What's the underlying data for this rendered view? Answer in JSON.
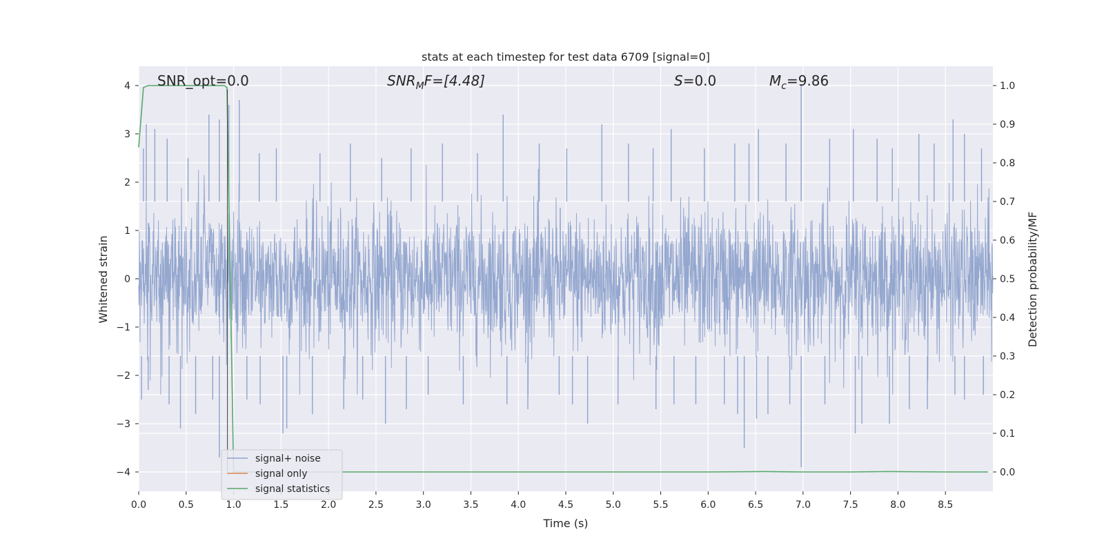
{
  "chart_data": {
    "type": "line",
    "title": "stats at each timestep for test data 6709 [signal=0]",
    "xlabel": "Time (s)",
    "ylabel_left": "Whitened strain",
    "ylabel_right": "Detection probability/MF",
    "xlim": [
      0.0,
      9.0
    ],
    "ylim_left": [
      -4.4,
      4.4
    ],
    "ylim_right": [
      -0.05,
      1.05
    ],
    "x_ticks": [
      "0.0",
      "0.5",
      "1.0",
      "1.5",
      "2.0",
      "2.5",
      "3.0",
      "3.5",
      "4.0",
      "4.5",
      "5.0",
      "5.5",
      "6.0",
      "6.5",
      "7.0",
      "7.5",
      "8.0",
      "8.5"
    ],
    "x_tick_values": [
      0,
      0.5,
      1,
      1.5,
      2,
      2.5,
      3,
      3.5,
      4,
      4.5,
      5,
      5.5,
      6,
      6.5,
      7,
      7.5,
      8,
      8.5
    ],
    "y_left_ticks": [
      "4",
      "3",
      "2",
      "1",
      "0",
      "−1",
      "−2",
      "−3",
      "−4"
    ],
    "y_left_tick_values": [
      4,
      3,
      2,
      1,
      0,
      -1,
      -2,
      -3,
      -4
    ],
    "y_right_ticks": [
      "1.0",
      "0.9",
      "0.8",
      "0.7",
      "0.6",
      "0.5",
      "0.4",
      "0.3",
      "0.2",
      "0.1",
      "0.0"
    ],
    "y_right_tick_values": [
      1.0,
      0.9,
      0.8,
      0.7,
      0.6,
      0.5,
      0.4,
      0.3,
      0.2,
      0.1,
      0.0
    ],
    "grid": true,
    "legend_placement": "lower-left",
    "annotations": {
      "snr_opt": "SNR_opt=0.0",
      "snr_mf_main": "SNR",
      "snr_mf_sub": "M",
      "snr_mf_rest": "F=[4.48]",
      "s_main": "S",
      "s_rest": "=0.0",
      "mc_main": "M",
      "mc_sub": "c",
      "mc_rest": "=9.86"
    },
    "series": [
      {
        "name": "signal+ noise",
        "color": "#8fa3cc",
        "axis": "left",
        "style": "dense-noise",
        "envelope_typical": [
          -1.6,
          1.6
        ],
        "peaks_x": [
          0.05,
          0.08,
          0.17,
          0.3,
          0.52,
          0.74,
          0.85,
          0.95,
          1.06,
          1.27,
          1.45,
          1.91,
          2.23,
          2.56,
          2.87,
          3.2,
          3.57,
          3.84,
          4.22,
          4.51,
          4.88,
          5.16,
          5.42,
          5.61,
          5.96,
          6.28,
          6.43,
          6.53,
          6.82,
          6.98,
          7.28,
          7.53,
          7.78,
          7.94,
          8.22,
          8.38,
          8.58,
          8.7,
          8.88
        ],
        "peaks_y": [
          2.7,
          3.2,
          3.1,
          2.9,
          2.5,
          3.4,
          3.3,
          3.6,
          3.7,
          2.6,
          2.7,
          2.6,
          2.8,
          2.5,
          2.7,
          2.8,
          2.6,
          3.4,
          2.8,
          2.7,
          3.2,
          2.8,
          2.7,
          3.1,
          2.7,
          2.8,
          2.8,
          3.1,
          2.8,
          4.0,
          2.9,
          3.1,
          2.9,
          2.7,
          3.0,
          2.8,
          3.3,
          3.0,
          2.7
        ],
        "troughs_x": [
          0.03,
          0.1,
          0.32,
          0.44,
          0.6,
          0.78,
          0.85,
          1.14,
          1.28,
          1.52,
          1.56,
          1.83,
          2.16,
          2.36,
          2.6,
          2.82,
          3.05,
          3.42,
          3.88,
          4.1,
          4.43,
          4.57,
          4.73,
          5.05,
          5.45,
          5.64,
          5.87,
          6.17,
          6.31,
          6.38,
          6.51,
          6.63,
          6.86,
          6.98,
          7.23,
          7.55,
          7.62,
          7.91,
          8.12,
          8.31,
          8.6,
          8.7,
          8.9
        ],
        "troughs_y": [
          -2.5,
          -2.3,
          -2.6,
          -3.1,
          -2.8,
          -2.5,
          -3.7,
          -2.5,
          -2.6,
          -3.2,
          -3.1,
          -2.8,
          -2.7,
          -2.5,
          -3.0,
          -2.7,
          -2.4,
          -2.6,
          -2.6,
          -2.7,
          -2.4,
          -2.6,
          -3.0,
          -2.6,
          -2.7,
          -2.6,
          -2.6,
          -2.6,
          -2.8,
          -3.5,
          -2.9,
          -2.8,
          -2.6,
          -3.9,
          -2.6,
          -3.2,
          -3.0,
          -3.0,
          -2.7,
          -2.7,
          -2.4,
          -2.5,
          -2.4
        ]
      },
      {
        "name": "signal only",
        "color": "#dd8452",
        "axis": "left",
        "x": [],
        "y": []
      },
      {
        "name": "signal statistics",
        "color": "#55a868",
        "axis": "right",
        "x": [
          0.0,
          0.05,
          0.1,
          0.2,
          0.4,
          0.6,
          0.8,
          0.9,
          0.93,
          1.0,
          1.3,
          2.0,
          3.0,
          4.0,
          5.0,
          6.0,
          6.6,
          7.0,
          7.5,
          7.9,
          8.5,
          8.95
        ],
        "y": [
          0.84,
          0.995,
          1.0,
          1.0,
          1.0,
          1.0,
          1.0,
          1.0,
          0.995,
          0.0,
          0.0,
          0.0,
          0.0,
          0.0,
          0.0,
          0.0,
          0.001,
          0.0,
          0.0,
          0.001,
          0.0,
          0.0
        ]
      }
    ]
  }
}
